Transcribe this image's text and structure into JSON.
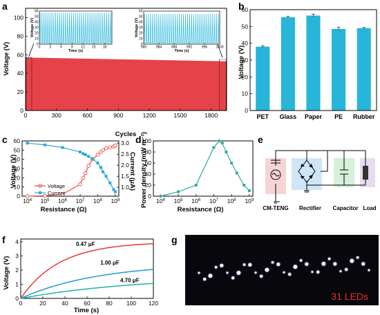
{
  "panels": {
    "a": "a",
    "b": "b",
    "c": "c",
    "d": "d",
    "e": "e",
    "f": "f",
    "g": "g"
  },
  "chart_data": [
    {
      "id": "a",
      "type": "area",
      "xlabel": "Cycles",
      "ylabel": "Voltage (V)",
      "xlim": [
        0,
        1950
      ],
      "ylim": [
        0,
        110
      ],
      "xticks": [
        0,
        300,
        600,
        900,
        1200,
        1500,
        1800
      ],
      "yticks": [
        0,
        20,
        40,
        60,
        80,
        100
      ],
      "peak_voltage_start": 57,
      "peak_voltage_end": 53,
      "insets": [
        {
          "xlabel": "Time (s)",
          "ylabel": "Voltage (V)",
          "xlim": [
            0,
            20
          ],
          "ylim": [
            0,
            60
          ],
          "xticks": [
            0,
            3,
            6,
            9,
            12,
            15,
            18
          ],
          "yticks": [
            0,
            10,
            20,
            30,
            40,
            50,
            60
          ],
          "peak": 57,
          "cycles": 37
        },
        {
          "xlabel": "Time (s)",
          "ylabel": "Voltage (V)",
          "xlim": [
            980,
            1000
          ],
          "ylim": [
            0,
            60
          ],
          "xticks": [
            980,
            984,
            988,
            992,
            996,
            1000
          ],
          "yticks": [
            0,
            10,
            20,
            30,
            40,
            50,
            60
          ],
          "peak": 55,
          "cycles": 37
        }
      ],
      "color": "#e54349"
    },
    {
      "id": "b",
      "type": "bar",
      "categories": [
        "PET",
        "Glass",
        "Paper",
        "PE",
        "Rubber"
      ],
      "values": [
        38,
        55.5,
        56.5,
        48.5,
        49
      ],
      "errors": [
        0.6,
        0.5,
        0.9,
        1.1,
        0.4
      ],
      "ylabel": "Voltage (V)",
      "xlabel": "",
      "ylim": [
        0,
        60
      ],
      "yticks": [
        0,
        10,
        20,
        30,
        40,
        50,
        60
      ],
      "color": "#27b5d9"
    },
    {
      "id": "c",
      "type": "line",
      "xlabel": "Resistance (Ω)",
      "ylabel": "Voltage (V)",
      "y2label": "Current (μA)",
      "x_exponents": [
        4,
        5,
        6,
        7,
        8,
        9
      ],
      "ylim": [
        0,
        60
      ],
      "yticks": [
        0,
        10,
        20,
        30,
        40,
        50,
        60
      ],
      "y2lim": [
        0.6,
        3.1
      ],
      "y2ticks": [
        1.0,
        1.5,
        2.0,
        2.5,
        3.0
      ],
      "series": [
        {
          "name": "Voltage",
          "axis": "left",
          "color": "#e84a4a",
          "x": [
            10000,
            100000,
            1000000,
            10000000,
            15000000,
            20000000,
            30000000,
            50000000,
            100000000,
            150000000,
            200000000,
            300000000,
            500000000,
            800000000,
            1000000000
          ],
          "y": [
            0,
            0.5,
            2,
            13,
            20,
            25,
            33,
            40,
            45,
            48,
            50,
            52,
            53,
            54,
            55
          ]
        },
        {
          "name": "Current",
          "axis": "right",
          "color": "#2aa9d2",
          "x": [
            10000,
            100000,
            1000000,
            10000000,
            15000000,
            20000000,
            30000000,
            50000000,
            100000000,
            150000000,
            200000000,
            300000000,
            500000000,
            800000000,
            1000000000
          ],
          "y": [
            3.0,
            2.92,
            2.8,
            2.6,
            2.52,
            2.48,
            2.4,
            2.3,
            2.1,
            1.9,
            1.7,
            1.5,
            1.2,
            0.9,
            0.8
          ]
        }
      ]
    },
    {
      "id": "d",
      "type": "line",
      "xlabel": "Resistance (Ω)",
      "ylabel": "Power density (mW m⁻²)",
      "x_exponents": [
        4,
        5,
        6,
        7,
        8,
        9
      ],
      "ylim": [
        0,
        100
      ],
      "yticks": [
        0,
        20,
        40,
        60,
        80,
        100
      ],
      "series": [
        {
          "name": "",
          "color": "#2aaa9a",
          "x": [
            10000,
            100000,
            1000000,
            10000000,
            20000000,
            30000000,
            50000000,
            100000000,
            200000000,
            500000000,
            1000000000
          ],
          "y": [
            0,
            8,
            20,
            88,
            100,
            96,
            80,
            60,
            42,
            20,
            10
          ]
        }
      ]
    },
    {
      "id": "f",
      "type": "line",
      "xlabel": "Time (s)",
      "ylabel": "Voltage (V)",
      "xlim": [
        0,
        120
      ],
      "ylim": [
        0,
        4.2
      ],
      "xticks": [
        0,
        20,
        40,
        60,
        80,
        100,
        120
      ],
      "yticks": [
        0,
        1,
        2,
        3,
        4
      ],
      "series": [
        {
          "name": "0.47 μF",
          "color": "#e53935",
          "tau": 35,
          "vmax": 4.0,
          "label_x": 50,
          "label_y": 3.7
        },
        {
          "name": "1.00 μF",
          "color": "#1e9bd0",
          "tau": 70,
          "vmax": 2.5,
          "label_x": 72,
          "label_y": 2.4
        },
        {
          "name": "4.70 μF",
          "color": "#1cb3a0",
          "tau": 110,
          "vmax": 1.6,
          "label_x": 90,
          "label_y": 1.15
        }
      ]
    }
  ],
  "circuit": {
    "labels": [
      "CM-TENG",
      "Rectifier",
      "Capacitor",
      "Load"
    ]
  },
  "leds": {
    "caption": "31 LEDs",
    "count": 31
  }
}
